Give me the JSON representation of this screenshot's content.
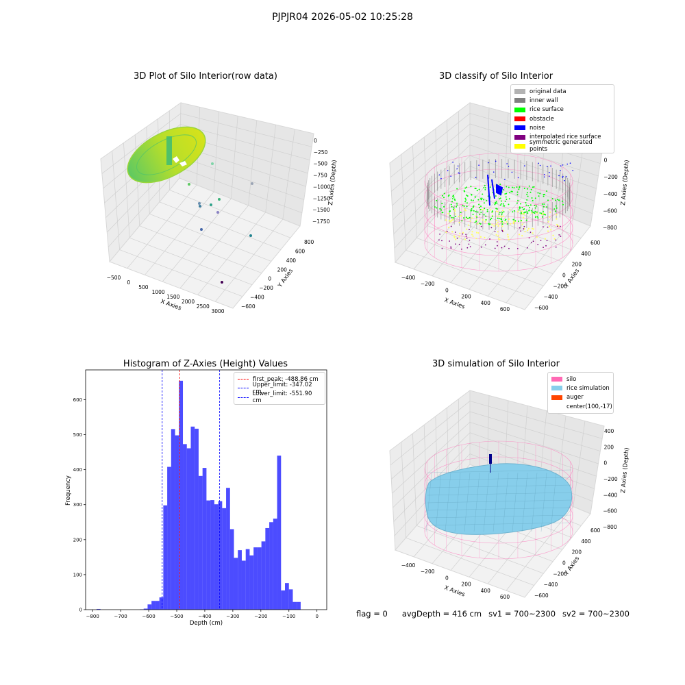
{
  "figure": {
    "suptitle": "PJPJR04 2026-05-02 10:25:28",
    "status": {
      "flag": "flag = 0",
      "avg_depth": "avgDepth = 416 cm",
      "sv1": "sv1 = 700~2300",
      "sv2": "sv2 = 700~2300"
    }
  },
  "chart_data": [
    {
      "type": "scatter",
      "title": "3D Plot of Silo Interior(row data)",
      "xlabel": "X Axies",
      "ylabel": "Y Axies",
      "zlabel": "Z Axies (Depth)",
      "x_ticks": [
        "−500",
        "0",
        "500",
        "1000",
        "1500",
        "2000",
        "2500",
        "3000"
      ],
      "y_ticks": [
        "−600",
        "−400",
        "−200",
        "0",
        "200",
        "400",
        "600",
        "800"
      ],
      "z_ticks": [
        "0",
        "−250",
        "−500",
        "−750",
        "−1000",
        "−1250",
        "−1500",
        "−1750"
      ],
      "xlim": [
        -600,
        3200
      ],
      "ylim": [
        -700,
        900
      ],
      "zlim": [
        -1950,
        100
      ],
      "colormap": "viridis"
    },
    {
      "type": "scatter",
      "title": "3D classify of Silo Interior",
      "xlabel": "X Axies",
      "ylabel": "Y Axies",
      "zlabel": "Z Axies (Depth)",
      "x_ticks": [
        "−400",
        "−200",
        "0",
        "200",
        "400",
        "600"
      ],
      "y_ticks": [
        "−600",
        "−400",
        "−200",
        "0",
        "200",
        "400",
        "600"
      ],
      "z_ticks": [
        "200",
        "0",
        "−200",
        "−400",
        "−600",
        "−800"
      ],
      "legend": [
        {
          "label": "original data",
          "color": "#b3b3b3"
        },
        {
          "label": "inner wall",
          "color": "#808080"
        },
        {
          "label": "rice surface",
          "color": "#00ff00"
        },
        {
          "label": "obstacle",
          "color": "#ff0000"
        },
        {
          "label": "noise",
          "color": "#0000ff"
        },
        {
          "label": "interpolated rice surface",
          "color": "#800080"
        },
        {
          "label": "symmetric generated points",
          "color": "#ffff00"
        }
      ]
    },
    {
      "type": "bar",
      "title": "Histogram of Z-Axies (Height) Values",
      "xlabel": "Depth (cm)",
      "ylabel": "Frequency",
      "xlim": [
        -825,
        35
      ],
      "ylim": [
        0,
        685
      ],
      "x_ticks": [
        -800,
        -700,
        -600,
        -500,
        -400,
        -300,
        -200,
        -100,
        0
      ],
      "y_ticks": [
        0,
        100,
        200,
        300,
        400,
        500,
        600
      ],
      "bar_color": "#0000ff",
      "bins": [
        {
          "x0": -786,
          "x1": -772,
          "v": 2
        },
        {
          "x0": -632,
          "x1": -618,
          "v": 1
        },
        {
          "x0": -618,
          "x1": -604,
          "v": 3
        },
        {
          "x0": -604,
          "x1": -590,
          "v": 15
        },
        {
          "x0": -590,
          "x1": -576,
          "v": 25
        },
        {
          "x0": -576,
          "x1": -562,
          "v": 25
        },
        {
          "x0": -562,
          "x1": -548,
          "v": 35
        },
        {
          "x0": -548,
          "x1": -534,
          "v": 298
        },
        {
          "x0": -534,
          "x1": -520,
          "v": 408
        },
        {
          "x0": -520,
          "x1": -506,
          "v": 516
        },
        {
          "x0": -506,
          "x1": -492,
          "v": 498
        },
        {
          "x0": -492,
          "x1": -478,
          "v": 654
        },
        {
          "x0": -478,
          "x1": -464,
          "v": 473
        },
        {
          "x0": -464,
          "x1": -450,
          "v": 461
        },
        {
          "x0": -450,
          "x1": -436,
          "v": 523
        },
        {
          "x0": -436,
          "x1": -422,
          "v": 517
        },
        {
          "x0": -422,
          "x1": -408,
          "v": 382
        },
        {
          "x0": -408,
          "x1": -394,
          "v": 405
        },
        {
          "x0": -394,
          "x1": -380,
          "v": 312
        },
        {
          "x0": -380,
          "x1": -366,
          "v": 313
        },
        {
          "x0": -366,
          "x1": -352,
          "v": 301
        },
        {
          "x0": -352,
          "x1": -338,
          "v": 310
        },
        {
          "x0": -338,
          "x1": -324,
          "v": 290
        },
        {
          "x0": -324,
          "x1": -310,
          "v": 348
        },
        {
          "x0": -310,
          "x1": -296,
          "v": 230
        },
        {
          "x0": -296,
          "x1": -282,
          "v": 148
        },
        {
          "x0": -282,
          "x1": -268,
          "v": 170
        },
        {
          "x0": -268,
          "x1": -254,
          "v": 140
        },
        {
          "x0": -254,
          "x1": -240,
          "v": 173
        },
        {
          "x0": -240,
          "x1": -226,
          "v": 155
        },
        {
          "x0": -226,
          "x1": -212,
          "v": 178
        },
        {
          "x0": -212,
          "x1": -198,
          "v": 178
        },
        {
          "x0": -198,
          "x1": -184,
          "v": 195
        },
        {
          "x0": -184,
          "x1": -170,
          "v": 233
        },
        {
          "x0": -170,
          "x1": -156,
          "v": 250
        },
        {
          "x0": -156,
          "x1": -142,
          "v": 260
        },
        {
          "x0": -142,
          "x1": -128,
          "v": 440
        },
        {
          "x0": -128,
          "x1": -114,
          "v": 55
        },
        {
          "x0": -114,
          "x1": -100,
          "v": 76
        },
        {
          "x0": -100,
          "x1": -86,
          "v": 58
        },
        {
          "x0": -86,
          "x1": -72,
          "v": 22
        },
        {
          "x0": -72,
          "x1": -58,
          "v": 22
        }
      ],
      "vlines": [
        {
          "label": "first_peak: -488.86 cm",
          "x": -488.86,
          "color": "#ff0000"
        },
        {
          "label": "Upper_limit: -347.02 cm",
          "x": -347.02,
          "color": "#0000ff"
        },
        {
          "label": "Lower_limit: -551.90 cm",
          "x": -551.9,
          "color": "#0000ff"
        }
      ]
    },
    {
      "type": "area",
      "title": "3D simulation of Silo Interior",
      "xlabel": "X Axies",
      "ylabel": "Y Axies",
      "zlabel": "Z Axies (Depth)",
      "x_ticks": [
        "−400",
        "−200",
        "0",
        "200",
        "400",
        "600"
      ],
      "y_ticks": [
        "−600",
        "−400",
        "−200",
        "0",
        "200",
        "400",
        "600"
      ],
      "z_ticks": [
        "400",
        "200",
        "0",
        "−200",
        "−400",
        "−600",
        "−800"
      ],
      "legend": [
        {
          "label": "silo",
          "color": "#ff69b4"
        },
        {
          "label": "rice simulation",
          "color": "#87ceeb"
        },
        {
          "label": "auger",
          "color": "#ff4500"
        },
        {
          "label": "center(100,-17)",
          "color": ""
        }
      ]
    }
  ]
}
